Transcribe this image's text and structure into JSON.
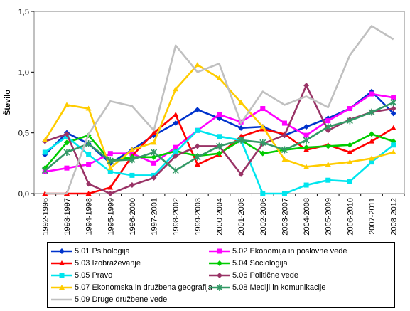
{
  "chart_data": {
    "type": "line",
    "ylabel": "Število",
    "xlabel": "",
    "ylim": [
      0,
      1.5
    ],
    "yticks": [
      "0,0",
      "0,5",
      "1,0",
      "1,5"
    ],
    "ytick_values": [
      0,
      0.5,
      1.0,
      1.5
    ],
    "grid": false,
    "legend_position": "bottom",
    "categories": [
      "1992-1996",
      "1993-1997",
      "1994-1998",
      "1995-1999",
      "1996-2000",
      "1997-2001",
      "1998-2002",
      "1999-2003",
      "2000-2004",
      "2001-2005",
      "2002-2006",
      "2003-2007",
      "2004-2008",
      "2005-2009",
      "2006-2010",
      "2007-2011",
      "2008-2012"
    ],
    "series": [
      {
        "name": "5.01 Psihologija",
        "color": "#0033cc",
        "marker": "diamond",
        "values": [
          0.32,
          0.5,
          0.41,
          0.25,
          0.36,
          0.48,
          0.58,
          0.69,
          0.62,
          0.54,
          0.55,
          0.48,
          0.55,
          0.62,
          0.7,
          0.84,
          0.66
        ]
      },
      {
        "name": "5.02 Ekonomija in poslovne vede",
        "color": "#ff00ff",
        "marker": "square",
        "values": [
          0.18,
          0.21,
          0.24,
          0.33,
          0.33,
          0.25,
          0.38,
          0.52,
          0.65,
          0.59,
          0.7,
          0.58,
          0.48,
          0.6,
          0.7,
          0.82,
          0.79
        ]
      },
      {
        "name": "5.03 Izobraževanje",
        "color": "#ff0000",
        "marker": "triangle",
        "values": [
          0.0,
          0.0,
          0.0,
          0.05,
          0.31,
          0.5,
          0.65,
          0.24,
          0.32,
          0.47,
          0.53,
          0.49,
          0.36,
          0.4,
          0.34,
          0.43,
          0.54
        ]
      },
      {
        "name": "5.04 Sociologija",
        "color": "#00cc00",
        "marker": "diamond",
        "values": [
          0.21,
          0.42,
          0.48,
          0.27,
          0.3,
          0.3,
          0.35,
          0.31,
          0.33,
          0.44,
          0.33,
          0.36,
          0.38,
          0.39,
          0.4,
          0.49,
          0.43
        ]
      },
      {
        "name": "5.05 Pravo",
        "color": "#00e5ee",
        "marker": "square",
        "values": [
          0.34,
          0.47,
          0.32,
          0.18,
          0.15,
          0.15,
          0.34,
          0.52,
          0.47,
          0.44,
          0.0,
          0.0,
          0.07,
          0.11,
          0.1,
          0.26,
          0.4
        ]
      },
      {
        "name": "5.06 Politične vede",
        "color": "#993366",
        "marker": "diamond",
        "values": [
          0.43,
          0.49,
          0.08,
          0.0,
          0.07,
          0.13,
          0.31,
          0.39,
          0.39,
          0.16,
          0.41,
          0.48,
          0.89,
          0.52,
          0.61,
          0.67,
          0.7
        ]
      },
      {
        "name": "5.07 Ekonomska in družbena geografija",
        "color": "#ffcc00",
        "marker": "triangle",
        "values": [
          0.44,
          0.73,
          0.7,
          0.21,
          0.36,
          0.42,
          0.86,
          1.06,
          0.95,
          0.75,
          0.55,
          0.28,
          0.22,
          0.24,
          0.26,
          0.29,
          0.34
        ]
      },
      {
        "name": "5.08 Mediji in komunikacije",
        "color": "#339966",
        "marker": "star",
        "values": [
          0.19,
          0.34,
          0.41,
          0.27,
          0.28,
          0.34,
          0.19,
          0.3,
          0.39,
          0.44,
          0.42,
          0.36,
          0.44,
          0.55,
          0.6,
          0.67,
          0.75
        ]
      },
      {
        "name": "5.09 Druge družbene vede",
        "color": "#c0c0c0",
        "marker": "none",
        "values": [
          0.0,
          0.0,
          0.49,
          0.76,
          0.72,
          0.52,
          1.22,
          1.0,
          1.07,
          0.58,
          0.84,
          0.73,
          0.8,
          0.71,
          1.14,
          1.38,
          1.27
        ]
      }
    ]
  }
}
